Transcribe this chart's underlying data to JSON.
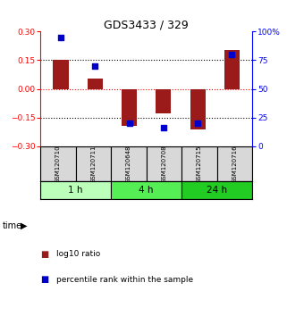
{
  "title": "GDS3433 / 329",
  "samples": [
    "GSM120710",
    "GSM120711",
    "GSM120648",
    "GSM120708",
    "GSM120715",
    "GSM120716"
  ],
  "log10_ratio": [
    0.153,
    0.055,
    -0.195,
    -0.13,
    -0.21,
    0.205
  ],
  "percentile_rank": [
    95,
    70,
    20,
    16,
    20,
    80
  ],
  "bar_color": "#9b1a1a",
  "dot_color": "#0000cc",
  "ylim_left": [
    -0.3,
    0.3
  ],
  "ylim_right": [
    0,
    100
  ],
  "yticks_left": [
    -0.3,
    -0.15,
    0,
    0.15,
    0.3
  ],
  "yticks_right": [
    0,
    25,
    50,
    75,
    100
  ],
  "ytick_labels_right": [
    "0",
    "25",
    "50",
    "75",
    "100%"
  ],
  "hlines_black": [
    0.15,
    -0.15
  ],
  "hline_red": 0,
  "time_groups": [
    {
      "label": "1 h",
      "cols": [
        0,
        1
      ],
      "color": "#bbffbb"
    },
    {
      "label": "4 h",
      "cols": [
        2,
        3
      ],
      "color": "#55ee55"
    },
    {
      "label": "24 h",
      "cols": [
        4,
        5
      ],
      "color": "#22cc22"
    }
  ],
  "time_label": "time",
  "legend_bar_label": "log10 ratio",
  "legend_dot_label": "percentile rank within the sample",
  "bg_color": "#ffffff",
  "plot_bg": "#ffffff",
  "bar_width": 0.45,
  "dot_size": 25
}
